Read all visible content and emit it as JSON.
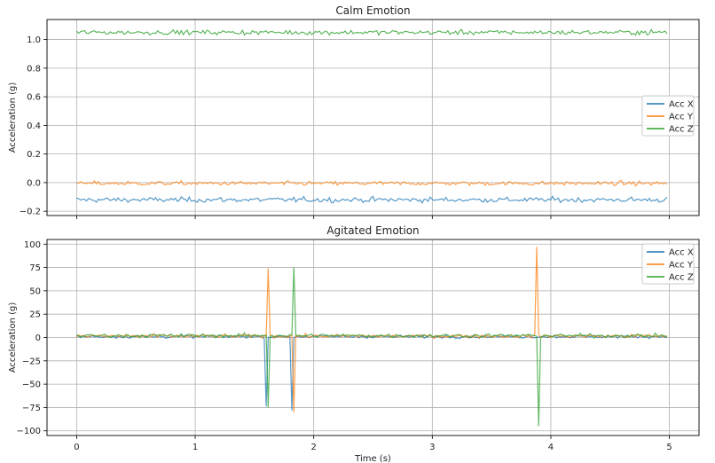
{
  "chart_data": [
    {
      "type": "line",
      "title": "Calm Emotion",
      "xlabel": "",
      "ylabel": "Acceleration (g)",
      "xlim": [
        -0.25,
        5.25
      ],
      "ylim": [
        -0.23,
        1.14
      ],
      "xticks": [
        0,
        1,
        2,
        3,
        4,
        5
      ],
      "xtick_labels_shown": false,
      "yticks": [
        -0.2,
        0.0,
        0.2,
        0.4,
        0.6,
        0.8,
        1.0
      ],
      "ytick_labels": [
        "−0.2",
        "0.0",
        "0.2",
        "0.4",
        "0.6",
        "0.8",
        "1.0"
      ],
      "grid": true,
      "legend": "center-right",
      "x_range": [
        0,
        4.98
      ],
      "series": [
        {
          "name": "Acc X",
          "color": "#1f77b4",
          "mean": -0.12,
          "noise": 0.022,
          "spikes": []
        },
        {
          "name": "Acc Y",
          "color": "#ff7f0e",
          "mean": -0.005,
          "noise": 0.018,
          "spikes": []
        },
        {
          "name": "Acc Z",
          "color": "#2ca02c",
          "mean": 1.05,
          "noise": 0.02,
          "spikes": []
        }
      ]
    },
    {
      "type": "line",
      "title": "Agitated Emotion",
      "xlabel": "Time (s)",
      "ylabel": "Acceleration (g)",
      "xlim": [
        -0.25,
        5.25
      ],
      "ylim": [
        -105,
        105
      ],
      "xticks": [
        0,
        1,
        2,
        3,
        4,
        5
      ],
      "xtick_labels": [
        "0",
        "1",
        "2",
        "3",
        "4",
        "5"
      ],
      "yticks": [
        -100,
        -75,
        -50,
        -25,
        0,
        25,
        50,
        75,
        100
      ],
      "ytick_labels": [
        "−100",
        "−75",
        "−50",
        "−25",
        "0",
        "25",
        "50",
        "75",
        "100"
      ],
      "grid": true,
      "legend": "top-right",
      "x_range": [
        0,
        4.98
      ],
      "series": [
        {
          "name": "Acc X",
          "color": "#1f77b4",
          "mean": 1.0,
          "noise": 2.0,
          "spikes": [
            [
              1.6,
              -74
            ],
            [
              1.82,
              -78
            ]
          ]
        },
        {
          "name": "Acc Y",
          "color": "#ff7f0e",
          "mean": 1.5,
          "noise": 2.2,
          "spikes": [
            [
              1.61,
              74
            ],
            [
              1.83,
              -80
            ],
            [
              3.88,
              97
            ]
          ]
        },
        {
          "name": "Acc Z",
          "color": "#2ca02c",
          "mean": 2.0,
          "noise": 2.5,
          "spikes": [
            [
              1.61,
              -75
            ],
            [
              1.83,
              75
            ],
            [
              3.89,
              -95
            ]
          ]
        }
      ]
    }
  ]
}
